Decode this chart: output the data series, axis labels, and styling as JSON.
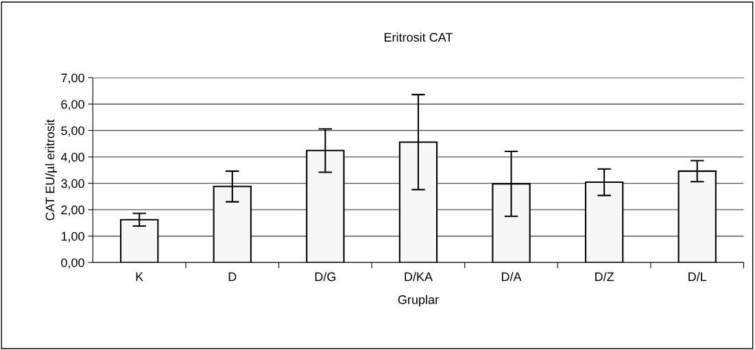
{
  "chart_data": {
    "type": "bar",
    "title": "Eritrosit CAT",
    "xlabel": "Gruplar",
    "ylabel": "CAT EU/µl eritrosit",
    "categories": [
      "K",
      "D",
      "D/G",
      "D/KA",
      "D/A",
      "D/Z",
      "D/L"
    ],
    "values": [
      1.62,
      2.88,
      4.24,
      4.56,
      2.98,
      3.04,
      3.46
    ],
    "errors": [
      0.24,
      0.58,
      0.82,
      1.8,
      1.23,
      0.5,
      0.4
    ],
    "color": "#f7f7f7",
    "ylim": [
      0,
      7
    ],
    "yticks": [
      {
        "value": 0,
        "label": "0,00"
      },
      {
        "value": 1,
        "label": "1,00"
      },
      {
        "value": 2,
        "label": "2,00"
      },
      {
        "value": 3,
        "label": "3,00"
      },
      {
        "value": 4,
        "label": "4,00"
      },
      {
        "value": 5,
        "label": "5,00"
      },
      {
        "value": 6,
        "label": "6,00"
      },
      {
        "value": 7,
        "label": "7,00"
      }
    ],
    "grid": "y",
    "legend": false
  }
}
